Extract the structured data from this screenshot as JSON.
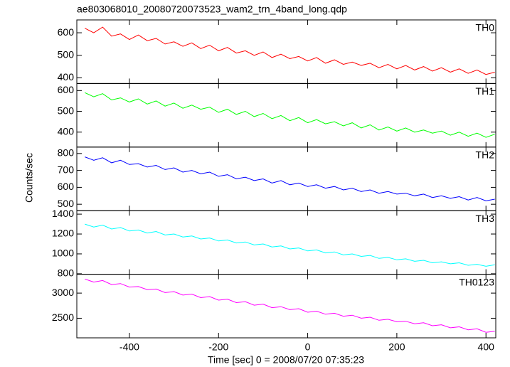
{
  "chart_data": {
    "type": "line",
    "title": "ae803068010_20080720073523_wam2_trn_4band_long.qdp",
    "xlabel": "Time [sec] 0 = 2008/07/20 07:35:23",
    "ylabel": "Counts/sec",
    "xlim": [
      -518,
      422
    ],
    "xticks": [
      -400,
      -200,
      0,
      200,
      400
    ],
    "x": [
      -500,
      -480,
      -460,
      -440,
      -420,
      -400,
      -380,
      -360,
      -340,
      -320,
      -300,
      -280,
      -260,
      -240,
      -220,
      -200,
      -180,
      -160,
      -140,
      -120,
      -100,
      -80,
      -60,
      -40,
      -20,
      0,
      20,
      40,
      60,
      80,
      100,
      120,
      140,
      160,
      180,
      200,
      220,
      240,
      260,
      280,
      300,
      320,
      340,
      360,
      380,
      400,
      420
    ],
    "series": [
      {
        "name": "TH0",
        "color": "#ff0000",
        "ylim": [
          375,
          657
        ],
        "yticks": [
          400,
          500,
          600
        ],
        "values": [
          620,
          600,
          625,
          585,
          595,
          570,
          590,
          565,
          575,
          550,
          560,
          540,
          555,
          530,
          545,
          520,
          535,
          510,
          520,
          500,
          515,
          490,
          505,
          485,
          495,
          475,
          490,
          465,
          480,
          460,
          470,
          455,
          465,
          445,
          460,
          440,
          455,
          435,
          450,
          430,
          445,
          425,
          440,
          420,
          435,
          415,
          425
        ]
      },
      {
        "name": "TH1",
        "color": "#00ff00",
        "ylim": [
          328,
          634
        ],
        "yticks": [
          400,
          500,
          600
        ],
        "values": [
          590,
          570,
          585,
          555,
          565,
          545,
          560,
          535,
          550,
          525,
          540,
          515,
          530,
          510,
          520,
          495,
          510,
          485,
          500,
          475,
          490,
          465,
          480,
          455,
          470,
          445,
          460,
          440,
          450,
          430,
          445,
          420,
          435,
          410,
          425,
          405,
          420,
          400,
          410,
          395,
          405,
          385,
          400,
          380,
          395,
          375,
          390
        ]
      },
      {
        "name": "TH2",
        "color": "#0000ff",
        "ylim": [
          462,
          838
        ],
        "yticks": [
          500,
          600,
          700,
          800
        ],
        "values": [
          780,
          760,
          775,
          745,
          760,
          735,
          740,
          720,
          730,
          705,
          715,
          690,
          700,
          680,
          690,
          665,
          675,
          650,
          660,
          640,
          650,
          625,
          640,
          615,
          625,
          605,
          615,
          595,
          605,
          585,
          595,
          575,
          585,
          565,
          575,
          560,
          565,
          550,
          560,
          540,
          550,
          535,
          545,
          525,
          540,
          520,
          530
        ]
      },
      {
        "name": "TH3",
        "color": "#00ffff",
        "ylim": [
          795,
          1435
        ],
        "yticks": [
          800,
          1000,
          1200,
          1400
        ],
        "values": [
          1300,
          1270,
          1290,
          1250,
          1265,
          1230,
          1240,
          1210,
          1225,
          1190,
          1200,
          1170,
          1180,
          1150,
          1160,
          1130,
          1140,
          1110,
          1120,
          1090,
          1100,
          1070,
          1080,
          1050,
          1060,
          1030,
          1040,
          1010,
          1020,
          990,
          1000,
          975,
          985,
          955,
          965,
          940,
          950,
          925,
          935,
          910,
          920,
          900,
          910,
          885,
          895,
          875,
          890
        ]
      },
      {
        "name": "TH0123",
        "color": "#ff00ff",
        "ylim": [
          2110,
          3375
        ],
        "yticks": [
          2500,
          3000
        ],
        "values": [
          3280,
          3220,
          3250,
          3170,
          3190,
          3120,
          3130,
          3070,
          3080,
          3010,
          3030,
          2960,
          2980,
          2910,
          2930,
          2860,
          2880,
          2810,
          2830,
          2760,
          2780,
          2710,
          2730,
          2670,
          2690,
          2620,
          2640,
          2580,
          2600,
          2540,
          2560,
          2500,
          2520,
          2460,
          2480,
          2430,
          2440,
          2390,
          2410,
          2350,
          2370,
          2310,
          2330,
          2270,
          2290,
          2220,
          2240
        ]
      }
    ]
  }
}
